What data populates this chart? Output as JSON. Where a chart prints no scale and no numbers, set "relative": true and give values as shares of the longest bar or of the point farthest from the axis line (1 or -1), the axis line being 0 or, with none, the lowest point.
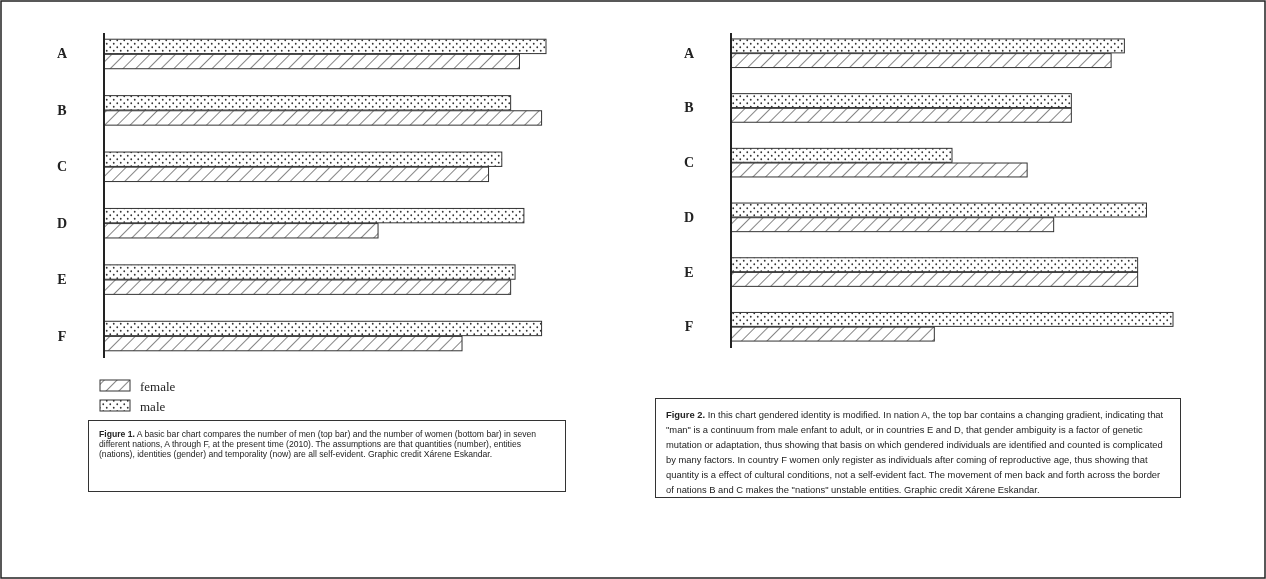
{
  "chart_data": [
    {
      "type": "bar",
      "orientation": "horizontal",
      "relative": true,
      "categories": [
        "A",
        "B",
        "C",
        "D",
        "E",
        "F"
      ],
      "legend": "bottom left",
      "series": [
        {
          "name": "male",
          "color": "#333333",
          "values": [
            1,
            0.92,
            0.9,
            0.95,
            0.93,
            0.99
          ]
        },
        {
          "name": "female",
          "color": "#333333",
          "values": [
            0.94,
            0.99,
            0.87,
            0.62,
            0.92,
            0.81
          ]
        }
      ],
      "annotations": [
        "Figure 1. A basic bar chart compares the number of men (top bar) and the number of women (bottom bar) in seven different nations, A through F, at the present time (2010). The assumptions are that quantities (number), entities (nations), identities (gender) and temporality (now) are all self-evident. Graphic credit Xárene Eskandar."
      ]
    },
    {
      "type": "bar",
      "orientation": "horizontal",
      "relative": true,
      "categories": [
        "A",
        "B",
        "C",
        "D",
        "E",
        "F"
      ],
      "legend": false,
      "series": [
        {
          "color": "#333333",
          "values": [
            0.89,
            0.77,
            0.5,
            0.94,
            0.92,
            1
          ]
        },
        {
          "color": "#333333",
          "values": [
            0.86,
            0.77,
            0.67,
            0.73,
            0.92,
            0.46
          ]
        }
      ],
      "annotations": [
        "Figure 2. In this chart gendered identity is modified. In nation A, the top bar contains a changing gradient, indicating that \"man\" is a continuum from male enfant to adult, or in countries E and D, that gender ambiguity is a factor of genetic mutation or adaptation, thus showing that basis on which gendered individuals are identified and counted is complicated by many factors. In country F women only register as individuals after coming of reproductive age, thus showing that quantity is a effect of cultural conditions, not a self-evident fact. The movement of men back and forth across the border of nations B and C makes the \"nations\" unstable entities. Graphic credit Xárene Eskandar."
      ]
    }
  ]
}
